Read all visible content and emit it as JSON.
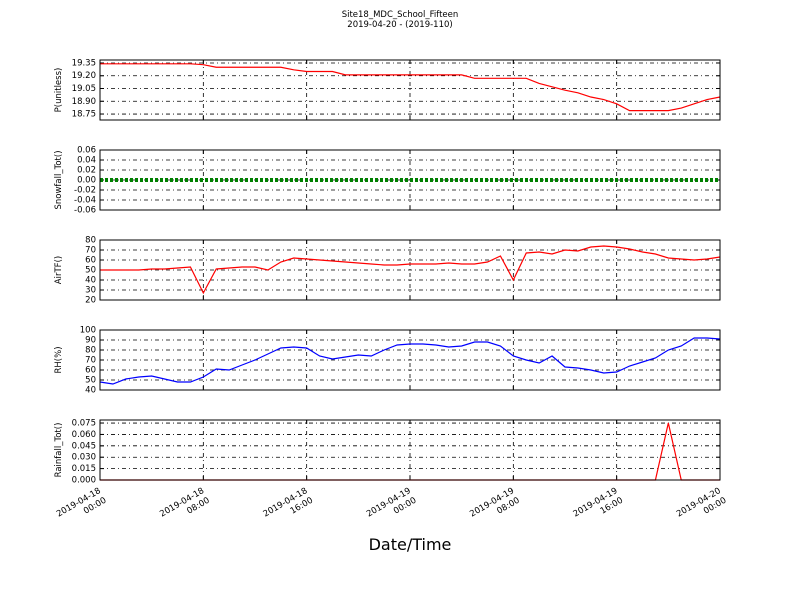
{
  "title": "Site18_MDC_School_Fifteen",
  "subtitle": "2019-04-20 - (2019-110)",
  "xlabel": "Date/Time",
  "chart_data": [
    {
      "type": "line",
      "ylabel": "P(unitless)",
      "color": "#ff0000",
      "grid": true,
      "xlim": [
        "2019-04-18 00:00",
        "2019-04-20 00:00"
      ],
      "xticks": [
        "2019-04-18 00:00",
        "2019-04-18 08:00",
        "2019-04-18 16:00",
        "2019-04-19 00:00",
        "2019-04-19 08:00",
        "2019-04-19 16:00",
        "2019-04-20 00:00"
      ],
      "ylim": [
        18.68,
        19.385
      ],
      "yticks": [
        18.75,
        {
          "value": 18.9,
          "label": "18.90"
        },
        19.05,
        {
          "value": 19.2,
          "label": "19.20"
        },
        19.35
      ],
      "x": [
        "2019-04-18 00:00",
        "2019-04-18 01:00",
        "2019-04-18 02:00",
        "2019-04-18 03:00",
        "2019-04-18 04:00",
        "2019-04-18 05:00",
        "2019-04-18 06:00",
        "2019-04-18 07:00",
        "2019-04-18 08:00",
        "2019-04-18 09:00",
        "2019-04-18 10:00",
        "2019-04-18 11:00",
        "2019-04-18 12:00",
        "2019-04-18 13:00",
        "2019-04-18 14:00",
        "2019-04-18 15:00",
        "2019-04-18 16:00",
        "2019-04-18 17:00",
        "2019-04-18 18:00",
        "2019-04-18 19:00",
        "2019-04-18 20:00",
        "2019-04-18 21:00",
        "2019-04-18 22:00",
        "2019-04-18 23:00",
        "2019-04-19 00:00",
        "2019-04-19 01:00",
        "2019-04-19 02:00",
        "2019-04-19 03:00",
        "2019-04-19 04:00",
        "2019-04-19 05:00",
        "2019-04-19 06:00",
        "2019-04-19 07:00",
        "2019-04-19 08:00",
        "2019-04-19 09:00",
        "2019-04-19 10:00",
        "2019-04-19 11:00",
        "2019-04-19 12:00",
        "2019-04-19 13:00",
        "2019-04-19 14:00",
        "2019-04-19 15:00",
        "2019-04-19 16:00",
        "2019-04-19 17:00",
        "2019-04-19 18:00",
        "2019-04-19 19:00",
        "2019-04-19 20:00",
        "2019-04-19 21:00",
        "2019-04-19 22:00",
        "2019-04-19 23:00",
        "2019-04-20 00:00"
      ],
      "values": [
        19.34,
        19.34,
        19.34,
        19.34,
        19.34,
        19.34,
        19.34,
        19.34,
        19.33,
        19.3,
        19.3,
        19.3,
        19.3,
        19.3,
        19.3,
        19.27,
        19.25,
        19.25,
        19.25,
        19.21,
        19.21,
        19.21,
        19.21,
        19.21,
        19.21,
        19.21,
        19.21,
        19.21,
        19.21,
        19.17,
        19.17,
        19.17,
        19.17,
        19.17,
        19.11,
        19.07,
        19.03,
        19.0,
        18.95,
        18.92,
        18.87,
        18.79,
        18.79,
        18.79,
        18.79,
        18.82,
        18.87,
        18.92,
        18.95
      ]
    },
    {
      "type": "line",
      "ylabel": "Snowfall_Tot()",
      "color": "#008000",
      "grid": true,
      "xlim": [
        "2019-04-18 00:00",
        "2019-04-20 00:00"
      ],
      "xticks": [
        "2019-04-18 00:00",
        "2019-04-18 08:00",
        "2019-04-18 16:00",
        "2019-04-19 00:00",
        "2019-04-19 08:00",
        "2019-04-19 16:00",
        "2019-04-20 00:00"
      ],
      "ylim": [
        -0.06,
        0.06
      ],
      "yticks": [
        -0.06,
        -0.04,
        -0.02,
        {
          "value": 0,
          "label": "0.00"
        },
        0.02,
        0.04,
        0.06
      ],
      "x": [
        "2019-04-18 00:00",
        "2019-04-18 01:00",
        "2019-04-18 02:00",
        "2019-04-18 03:00",
        "2019-04-18 04:00",
        "2019-04-18 05:00",
        "2019-04-18 06:00",
        "2019-04-18 07:00",
        "2019-04-18 08:00",
        "2019-04-18 09:00",
        "2019-04-18 10:00",
        "2019-04-18 11:00",
        "2019-04-18 12:00",
        "2019-04-18 13:00",
        "2019-04-18 14:00",
        "2019-04-18 15:00",
        "2019-04-18 16:00",
        "2019-04-18 17:00",
        "2019-04-18 18:00",
        "2019-04-18 19:00",
        "2019-04-18 20:00",
        "2019-04-18 21:00",
        "2019-04-18 22:00",
        "2019-04-18 23:00",
        "2019-04-19 00:00",
        "2019-04-19 01:00",
        "2019-04-19 02:00",
        "2019-04-19 03:00",
        "2019-04-19 04:00",
        "2019-04-19 05:00",
        "2019-04-19 06:00",
        "2019-04-19 07:00",
        "2019-04-19 08:00",
        "2019-04-19 09:00",
        "2019-04-19 10:00",
        "2019-04-19 11:00",
        "2019-04-19 12:00",
        "2019-04-19 13:00",
        "2019-04-19 14:00",
        "2019-04-19 15:00",
        "2019-04-19 16:00",
        "2019-04-19 17:00",
        "2019-04-19 18:00",
        "2019-04-19 19:00",
        "2019-04-19 20:00",
        "2019-04-19 21:00",
        "2019-04-19 22:00",
        "2019-04-19 23:00",
        "2019-04-20 00:00"
      ],
      "values": [
        0,
        0,
        0,
        0,
        0,
        0,
        0,
        0,
        0,
        0,
        0,
        0,
        0,
        0,
        0,
        0,
        0,
        0,
        0,
        0,
        0,
        0,
        0,
        0,
        0,
        0,
        0,
        0,
        0,
        0,
        0,
        0,
        0,
        0,
        0,
        0,
        0,
        0,
        0,
        0,
        0,
        0,
        0,
        0,
        0,
        0,
        0,
        0,
        0
      ]
    },
    {
      "type": "line",
      "ylabel": "AirTF()",
      "color": "#ff0000",
      "grid": true,
      "xlim": [
        "2019-04-18 00:00",
        "2019-04-20 00:00"
      ],
      "xticks": [
        "2019-04-18 00:00",
        "2019-04-18 08:00",
        "2019-04-18 16:00",
        "2019-04-19 00:00",
        "2019-04-19 08:00",
        "2019-04-19 16:00",
        "2019-04-20 00:00"
      ],
      "ylim": [
        20,
        80
      ],
      "yticks": [
        20,
        30,
        40,
        50,
        60,
        70,
        80
      ],
      "x": [
        "2019-04-18 00:00",
        "2019-04-18 01:00",
        "2019-04-18 02:00",
        "2019-04-18 03:00",
        "2019-04-18 04:00",
        "2019-04-18 05:00",
        "2019-04-18 06:00",
        "2019-04-18 07:00",
        "2019-04-18 08:00",
        "2019-04-18 09:00",
        "2019-04-18 10:00",
        "2019-04-18 11:00",
        "2019-04-18 12:00",
        "2019-04-18 13:00",
        "2019-04-18 14:00",
        "2019-04-18 15:00",
        "2019-04-18 16:00",
        "2019-04-18 17:00",
        "2019-04-18 18:00",
        "2019-04-18 19:00",
        "2019-04-18 20:00",
        "2019-04-18 21:00",
        "2019-04-18 22:00",
        "2019-04-18 23:00",
        "2019-04-19 00:00",
        "2019-04-19 01:00",
        "2019-04-19 02:00",
        "2019-04-19 03:00",
        "2019-04-19 04:00",
        "2019-04-19 05:00",
        "2019-04-19 06:00",
        "2019-04-19 07:00",
        "2019-04-19 08:00",
        "2019-04-19 09:00",
        "2019-04-19 10:00",
        "2019-04-19 11:00",
        "2019-04-19 12:00",
        "2019-04-19 13:00",
        "2019-04-19 14:00",
        "2019-04-19 15:00",
        "2019-04-19 16:00",
        "2019-04-19 17:00",
        "2019-04-19 18:00",
        "2019-04-19 19:00",
        "2019-04-19 20:00",
        "2019-04-19 21:00",
        "2019-04-19 22:00",
        "2019-04-19 23:00",
        "2019-04-20 00:00"
      ],
      "values": [
        50,
        50,
        50,
        50,
        51,
        51,
        52,
        53,
        27,
        51,
        52,
        53,
        53,
        50,
        58,
        62,
        61,
        60,
        59,
        58,
        57,
        56,
        55,
        55,
        56,
        56,
        56,
        57,
        56,
        56,
        58,
        64,
        40,
        67,
        68,
        66,
        70,
        69,
        73,
        74,
        73,
        71,
        68,
        66,
        62,
        61,
        60,
        61,
        63
      ]
    },
    {
      "type": "line",
      "ylabel": "RH(%)",
      "color": "#0000ff",
      "grid": true,
      "xlim": [
        "2019-04-18 00:00",
        "2019-04-20 00:00"
      ],
      "xticks": [
        "2019-04-18 00:00",
        "2019-04-18 08:00",
        "2019-04-18 16:00",
        "2019-04-19 00:00",
        "2019-04-19 08:00",
        "2019-04-19 16:00",
        "2019-04-20 00:00"
      ],
      "ylim": [
        40,
        100
      ],
      "yticks": [
        40,
        50,
        60,
        70,
        80,
        90,
        100
      ],
      "x": [
        "2019-04-18 00:00",
        "2019-04-18 01:00",
        "2019-04-18 02:00",
        "2019-04-18 03:00",
        "2019-04-18 04:00",
        "2019-04-18 05:00",
        "2019-04-18 06:00",
        "2019-04-18 07:00",
        "2019-04-18 08:00",
        "2019-04-18 09:00",
        "2019-04-18 10:00",
        "2019-04-18 11:00",
        "2019-04-18 12:00",
        "2019-04-18 13:00",
        "2019-04-18 14:00",
        "2019-04-18 15:00",
        "2019-04-18 16:00",
        "2019-04-18 17:00",
        "2019-04-18 18:00",
        "2019-04-18 19:00",
        "2019-04-18 20:00",
        "2019-04-18 21:00",
        "2019-04-18 22:00",
        "2019-04-18 23:00",
        "2019-04-19 00:00",
        "2019-04-19 01:00",
        "2019-04-19 02:00",
        "2019-04-19 03:00",
        "2019-04-19 04:00",
        "2019-04-19 05:00",
        "2019-04-19 06:00",
        "2019-04-19 07:00",
        "2019-04-19 08:00",
        "2019-04-19 09:00",
        "2019-04-19 10:00",
        "2019-04-19 11:00",
        "2019-04-19 12:00",
        "2019-04-19 13:00",
        "2019-04-19 14:00",
        "2019-04-19 15:00",
        "2019-04-19 16:00",
        "2019-04-19 17:00",
        "2019-04-19 18:00",
        "2019-04-19 19:00",
        "2019-04-19 20:00",
        "2019-04-19 21:00",
        "2019-04-19 22:00",
        "2019-04-19 23:00",
        "2019-04-20 00:00"
      ],
      "values": [
        48,
        46,
        51,
        53,
        54,
        51,
        48,
        48,
        53,
        61,
        60,
        65,
        70,
        76,
        82,
        83,
        82,
        74,
        71,
        73,
        75,
        74,
        80,
        85,
        86,
        86,
        85,
        83,
        84,
        88,
        88,
        84,
        74,
        70,
        67,
        74,
        63,
        62,
        60,
        57,
        58,
        64,
        68,
        72,
        80,
        84,
        92,
        92,
        91
      ]
    },
    {
      "type": "line",
      "ylabel": "Rainfall_Tot()",
      "color": "#ff0000",
      "grid": true,
      "xlim": [
        "2019-04-18 00:00",
        "2019-04-20 00:00"
      ],
      "xticks": [
        {
          "value": "2019-04-18 00:00",
          "label": [
            "2019-04-18",
            "00:00"
          ]
        },
        {
          "value": "2019-04-18 08:00",
          "label": [
            "2019-04-18",
            "08:00"
          ]
        },
        {
          "value": "2019-04-18 16:00",
          "label": [
            "2019-04-18",
            "16:00"
          ]
        },
        {
          "value": "2019-04-19 00:00",
          "label": [
            "2019-04-19",
            "00:00"
          ]
        },
        {
          "value": "2019-04-19 08:00",
          "label": [
            "2019-04-19",
            "08:00"
          ]
        },
        {
          "value": "2019-04-19 16:00",
          "label": [
            "2019-04-19",
            "16:00"
          ]
        },
        {
          "value": "2019-04-20 00:00",
          "label": [
            "2019-04-20",
            "00:00"
          ]
        }
      ],
      "ylim": [
        0,
        0.079
      ],
      "yticks": [
        {
          "value": 0,
          "label": "0.000"
        },
        0.015,
        {
          "value": 0.03,
          "label": "0.030"
        },
        0.045,
        {
          "value": 0.06,
          "label": "0.060"
        },
        0.075
      ],
      "x": [
        "2019-04-18 00:00",
        "2019-04-18 01:00",
        "2019-04-18 02:00",
        "2019-04-18 03:00",
        "2019-04-18 04:00",
        "2019-04-18 05:00",
        "2019-04-18 06:00",
        "2019-04-18 07:00",
        "2019-04-18 08:00",
        "2019-04-18 09:00",
        "2019-04-18 10:00",
        "2019-04-18 11:00",
        "2019-04-18 12:00",
        "2019-04-18 13:00",
        "2019-04-18 14:00",
        "2019-04-18 15:00",
        "2019-04-18 16:00",
        "2019-04-18 17:00",
        "2019-04-18 18:00",
        "2019-04-18 19:00",
        "2019-04-18 20:00",
        "2019-04-18 21:00",
        "2019-04-18 22:00",
        "2019-04-18 23:00",
        "2019-04-19 00:00",
        "2019-04-19 01:00",
        "2019-04-19 02:00",
        "2019-04-19 03:00",
        "2019-04-19 04:00",
        "2019-04-19 05:00",
        "2019-04-19 06:00",
        "2019-04-19 07:00",
        "2019-04-19 08:00",
        "2019-04-19 09:00",
        "2019-04-19 10:00",
        "2019-04-19 11:00",
        "2019-04-19 12:00",
        "2019-04-19 13:00",
        "2019-04-19 14:00",
        "2019-04-19 15:00",
        "2019-04-19 16:00",
        "2019-04-19 17:00",
        "2019-04-19 18:00",
        "2019-04-19 19:00",
        "2019-04-19 20:00",
        "2019-04-19 21:00",
        "2019-04-19 22:00",
        "2019-04-19 23:00",
        "2019-04-20 00:00"
      ],
      "values": [
        0,
        0,
        0,
        0,
        0,
        0,
        0,
        0,
        0,
        0,
        0,
        0,
        0,
        0,
        0,
        0,
        0,
        0,
        0,
        0,
        0,
        0,
        0,
        0,
        0,
        0,
        0,
        0,
        0,
        0,
        0,
        0,
        0,
        0,
        0,
        0,
        0,
        0,
        0,
        0,
        0,
        0,
        0,
        0,
        0.075,
        0,
        0,
        0,
        0
      ]
    }
  ]
}
